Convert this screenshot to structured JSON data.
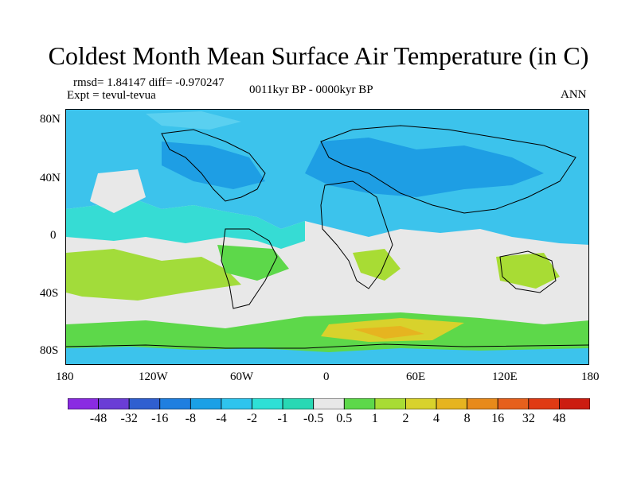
{
  "title": "Coldest Month Mean Surface Air Temperature (in C)",
  "stats": "rmsd= 1.84147  diff= -0.970247",
  "experiment": "Expt = tevul-tevua",
  "period": "0011kyr BP - 0000kyr BP",
  "season": "ANN",
  "axes": {
    "lat_labels": [
      "80N",
      "40N",
      "0",
      "40S",
      "80S"
    ],
    "lon_labels": [
      "180",
      "120W",
      "60W",
      "0",
      "60E",
      "120E",
      "180"
    ]
  },
  "colorbar": {
    "labels": [
      "-48",
      "-32",
      "-16",
      "-8",
      "-4",
      "-2",
      "-1",
      "-0.5",
      "0.5",
      "1",
      "2",
      "4",
      "8",
      "16",
      "32",
      "48"
    ],
    "colors": [
      "#8a2be2",
      "#6a3dd6",
      "#2f5fd0",
      "#1f7fe0",
      "#1aa0e6",
      "#2ec4ee",
      "#2ee0d6",
      "#28d8b4",
      "#e8e8e8",
      "#5dd84a",
      "#a8dc34",
      "#d8d22c",
      "#e6b420",
      "#e88a1a",
      "#e6601c",
      "#e03a14",
      "#cc1c10"
    ]
  }
}
